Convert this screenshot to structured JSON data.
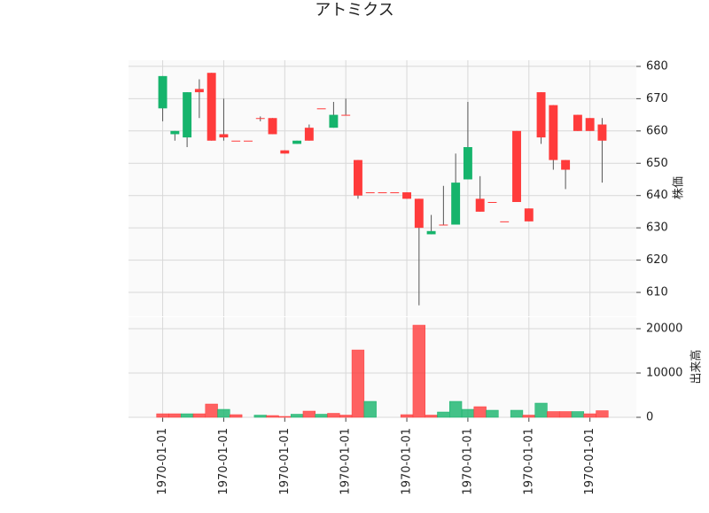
{
  "chart_data": {
    "type": "candlestick",
    "title": "アトミクス",
    "ylabel": "株価",
    "volume_ylabel": "出来高",
    "open": [
      667,
      659,
      658,
      673,
      678,
      659,
      657,
      657,
      664,
      664,
      654,
      656,
      661,
      667,
      661,
      665,
      651,
      641,
      641,
      641,
      641,
      639,
      628,
      631,
      631,
      645,
      639,
      638,
      632,
      660,
      636,
      672,
      668,
      651,
      665,
      664,
      662
    ],
    "high": [
      677,
      660,
      672,
      676,
      678,
      670,
      657,
      657,
      664.5,
      664,
      654,
      657,
      662,
      667,
      669,
      670,
      651,
      641,
      641,
      641,
      641,
      639,
      634,
      643,
      653,
      669,
      646,
      638,
      632,
      660,
      636,
      672,
      668,
      651,
      665,
      664,
      664
    ],
    "low": [
      663,
      657,
      655,
      664,
      657,
      657,
      657,
      657,
      663,
      659,
      653,
      656,
      657,
      667,
      661,
      665,
      639,
      641,
      641,
      641,
      639,
      606,
      628,
      631,
      631,
      645,
      635,
      638,
      632,
      638,
      632,
      656,
      648,
      642,
      660,
      660,
      644
    ],
    "close": [
      677,
      660,
      672,
      672,
      657,
      658,
      657,
      657,
      664,
      659,
      653,
      657,
      657,
      667,
      665,
      665,
      640,
      641,
      641,
      641,
      639,
      630,
      629,
      631,
      644,
      655,
      635,
      638,
      632,
      638,
      632,
      658,
      651,
      648,
      660,
      660,
      657
    ],
    "volume": [
      800,
      800,
      800,
      800,
      3000,
      1800,
      600,
      0,
      500,
      400,
      200,
      700,
      1400,
      700,
      900,
      500,
      15200,
      3600,
      0,
      0,
      600,
      20800,
      500,
      1200,
      3600,
      1800,
      2400,
      1600,
      0,
      1600,
      500,
      3200,
      1300,
      1300,
      1300,
      800,
      1500
    ],
    "up_color": "#16b46c",
    "down_color": "#ff3b3b",
    "xlim": [
      -2.8,
      38.8
    ],
    "xticks": [
      {
        "value": 0,
        "label": "1970-01-01"
      },
      {
        "value": 5,
        "label": "1970-01-01"
      },
      {
        "value": 10,
        "label": "1970-01-01"
      },
      {
        "value": 15,
        "label": "1970-01-01"
      },
      {
        "value": 20,
        "label": "1970-01-01"
      },
      {
        "value": 25,
        "label": "1970-01-01"
      },
      {
        "value": 30,
        "label": "1970-01-01"
      },
      {
        "value": 35,
        "label": "1970-01-01"
      }
    ],
    "ylim": [
      602.6,
      681.9
    ],
    "yticks": [
      610,
      620,
      630,
      640,
      650,
      660,
      670,
      680
    ],
    "volume_ylim": [
      0,
      22600
    ],
    "volume_yticks": [
      0,
      10000,
      20000
    ],
    "grid": true
  }
}
